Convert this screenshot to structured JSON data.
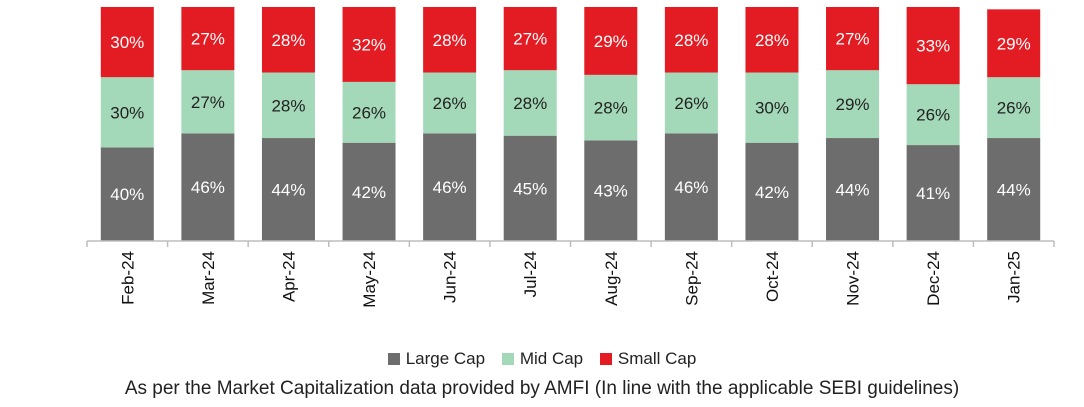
{
  "chart_data": {
    "type": "bar",
    "stacked": true,
    "categories": [
      "Feb-24",
      "Mar-24",
      "Apr-24",
      "May-24",
      "Jun-24",
      "Jul-24",
      "Aug-24",
      "Sep-24",
      "Oct-24",
      "Nov-24",
      "Dec-24",
      "Jan-25"
    ],
    "series": [
      {
        "name": "Large Cap",
        "color": "#6d6d6d",
        "values": [
          40,
          46,
          44,
          42,
          46,
          45,
          43,
          46,
          42,
          44,
          41,
          44
        ]
      },
      {
        "name": "Mid Cap",
        "color": "#a3d9b8",
        "values": [
          30,
          27,
          28,
          26,
          26,
          28,
          28,
          26,
          30,
          29,
          26,
          26
        ]
      },
      {
        "name": "Small Cap",
        "color": "#e31b23",
        "values": [
          30,
          27,
          28,
          32,
          28,
          27,
          29,
          28,
          28,
          27,
          33,
          29
        ]
      }
    ],
    "ylim": [
      0,
      100
    ],
    "grid": false,
    "legend_position": "bottom"
  },
  "footnote": "As per the Market Capitalization data provided by AMFI (In line with the applicable SEBI guidelines)"
}
